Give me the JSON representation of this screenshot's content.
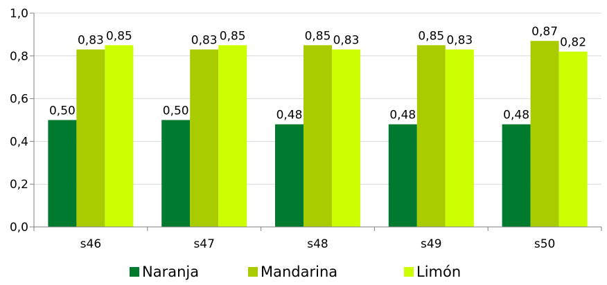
{
  "colors": {
    "naranja": "#007A2E",
    "mandarina": "#A8CC00",
    "limon": "#CCFF00",
    "grid": "#d9d9d9",
    "axis": "#808080"
  },
  "chart_data": {
    "type": "bar",
    "categories": [
      "s46",
      "s47",
      "s48",
      "s49",
      "s50"
    ],
    "series": [
      {
        "name": "Naranja",
        "values": [
          0.5,
          0.5,
          0.48,
          0.48,
          0.48
        ],
        "labels": [
          "0,50",
          "0,50",
          "0,48",
          "0,48",
          "0,48"
        ],
        "color_key": "naranja"
      },
      {
        "name": "Mandarina",
        "values": [
          0.83,
          0.83,
          0.85,
          0.85,
          0.87
        ],
        "labels": [
          "0,83",
          "0,83",
          "0,85",
          "0,85",
          "0,87"
        ],
        "color_key": "mandarina"
      },
      {
        "name": "Limón",
        "values": [
          0.85,
          0.85,
          0.83,
          0.83,
          0.82
        ],
        "labels": [
          "0,85",
          "0,85",
          "0,83",
          "0,83",
          "0,82"
        ],
        "color_key": "limon"
      }
    ],
    "ylim": [
      0,
      1.0
    ],
    "yticks": [
      0,
      0.2,
      0.4,
      0.6,
      0.8,
      1.0
    ],
    "ytick_labels": [
      "0,0",
      "0,2",
      "0,4",
      "0,6",
      "0,8",
      "1,0"
    ],
    "grid": true,
    "legend_position": "bottom",
    "title": "",
    "xlabel": "",
    "ylabel": ""
  }
}
